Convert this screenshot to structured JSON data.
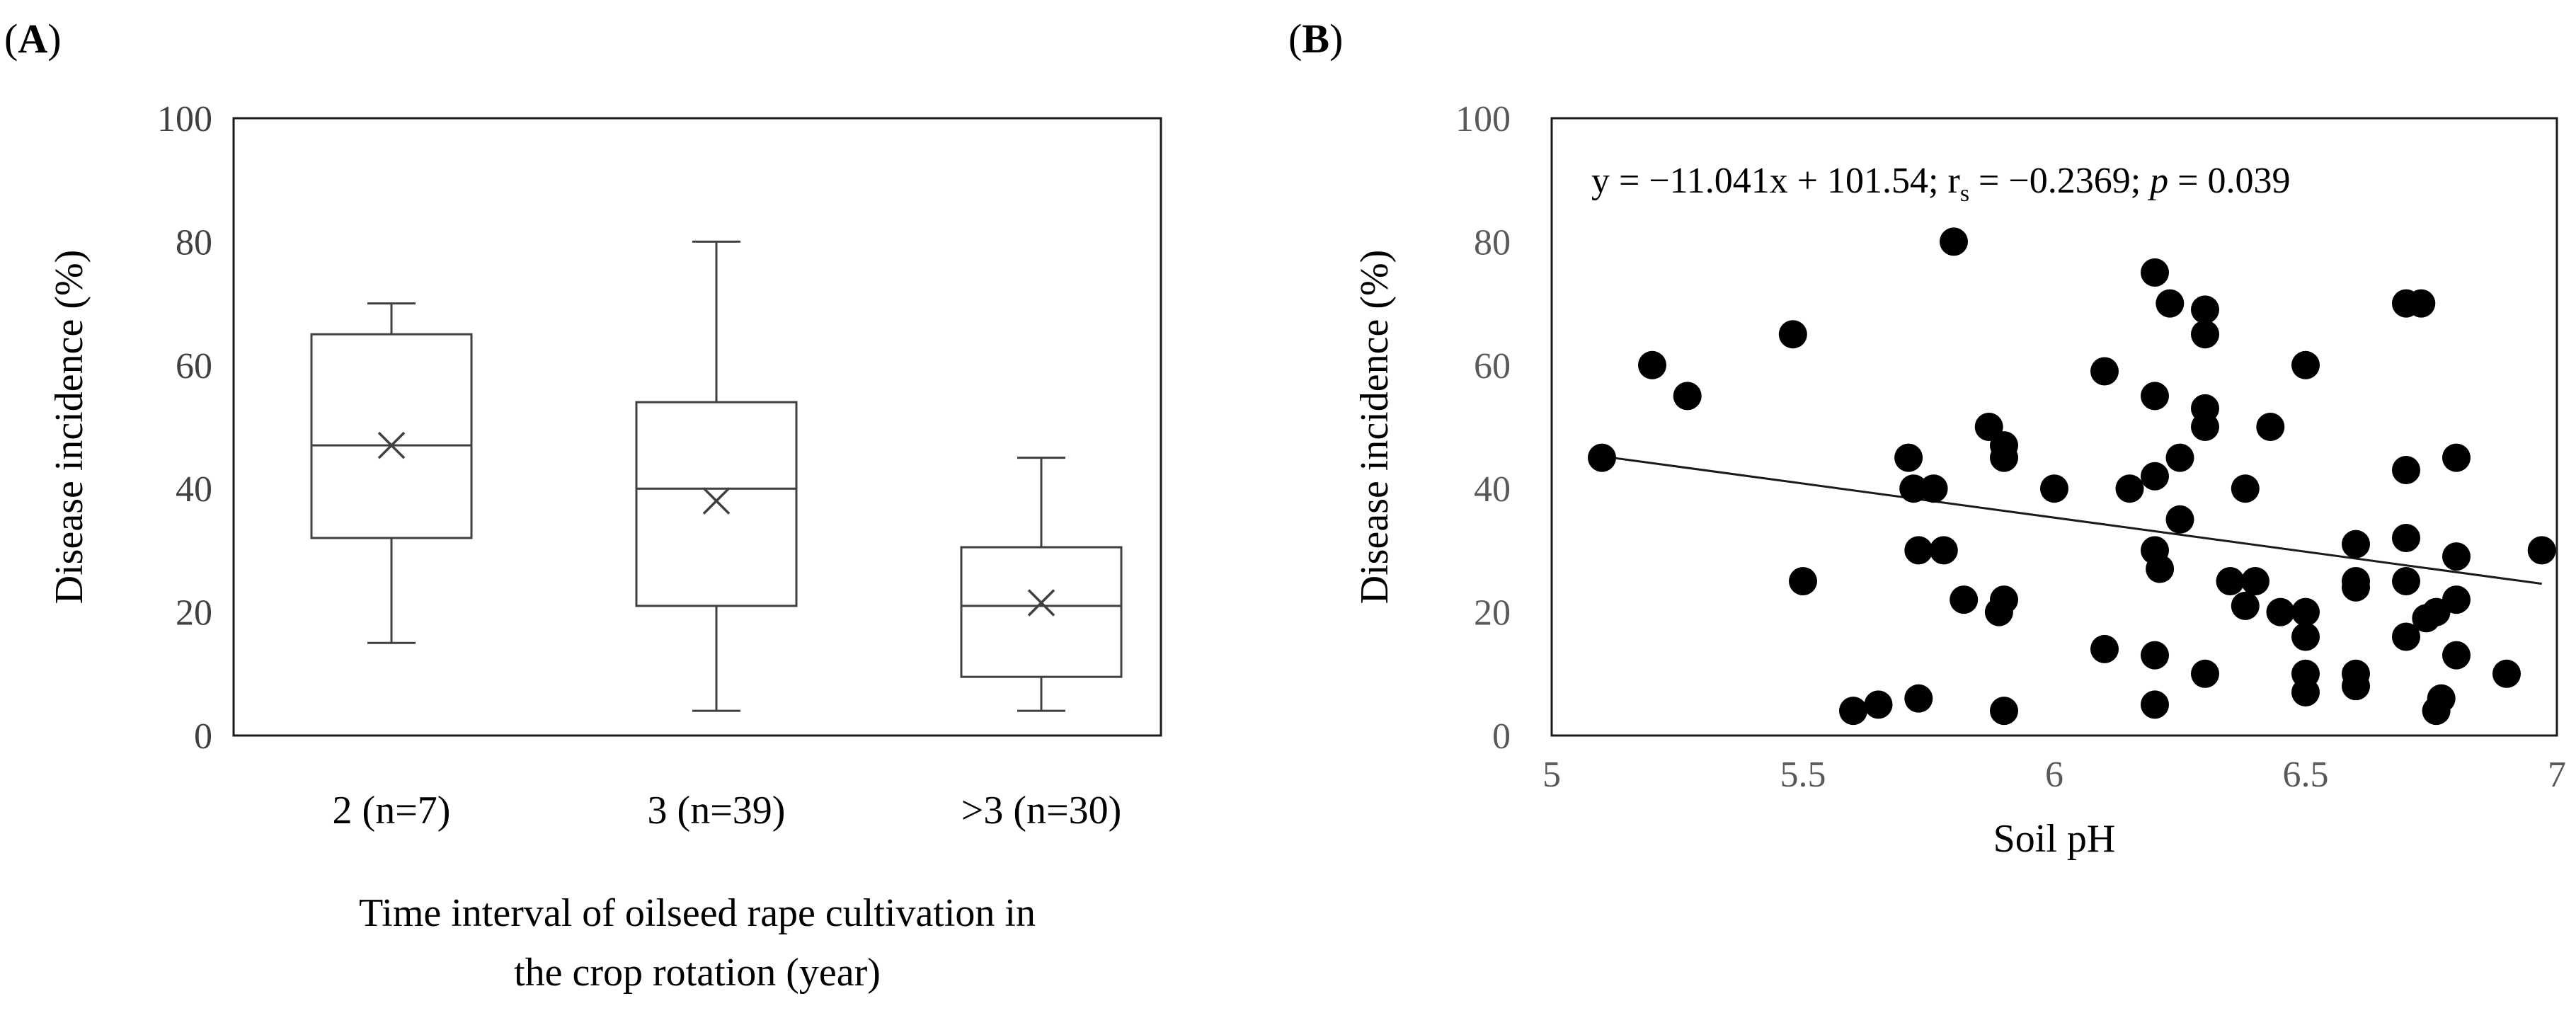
{
  "panels": {
    "a": {
      "label": "A"
    },
    "b": {
      "label": "B"
    }
  },
  "chart_data": [
    {
      "type": "box",
      "panel": "A",
      "ylabel": "Disease incidence (%)",
      "xlabel_lines": [
        "Time interval of oilseed rape cultivation in",
        "the crop rotation (year)"
      ],
      "ylim": [
        0,
        100
      ],
      "yticks": [
        0,
        20,
        40,
        60,
        80,
        100
      ],
      "grid": false,
      "categories": [
        "2 (n=7)",
        "3 (n=39)",
        ">3 (n=30)"
      ],
      "boxes": [
        {
          "min": 15,
          "q1": 32,
          "median": 47,
          "q3": 65,
          "max": 70,
          "mean": 47
        },
        {
          "min": 4,
          "q1": 21,
          "median": 40,
          "q3": 54,
          "max": 80,
          "mean": 38
        },
        {
          "min": 4,
          "q1": 9.5,
          "median": 21,
          "q3": 30.5,
          "max": 45,
          "mean": 21.5
        }
      ]
    },
    {
      "type": "scatter",
      "panel": "B",
      "xlabel": "Soil pH",
      "ylabel": "Disease incidence (%)",
      "xlim": [
        5,
        7
      ],
      "ylim": [
        0,
        100
      ],
      "xticks": [
        5,
        5.5,
        6,
        6.5,
        7
      ],
      "yticks": [
        0,
        20,
        40,
        60,
        80,
        100
      ],
      "grid": false,
      "annotation": {
        "prefix": "y = −11.041x + 101.54; r",
        "subscript": "s",
        "middle": " = −0.2369; ",
        "italic": "p",
        "suffix": " = 0.039"
      },
      "trendline": {
        "slope": -11.041,
        "intercept": 101.54,
        "x_range": [
          5.1,
          6.97
        ]
      },
      "points": [
        {
          "x": 5.1,
          "y": 45
        },
        {
          "x": 5.2,
          "y": 60
        },
        {
          "x": 5.27,
          "y": 55
        },
        {
          "x": 5.48,
          "y": 65
        },
        {
          "x": 5.5,
          "y": 25
        },
        {
          "x": 5.6,
          "y": 4
        },
        {
          "x": 5.65,
          "y": 5
        },
        {
          "x": 5.71,
          "y": 45
        },
        {
          "x": 5.72,
          "y": 40
        },
        {
          "x": 5.73,
          "y": 30
        },
        {
          "x": 5.73,
          "y": 6
        },
        {
          "x": 5.76,
          "y": 40
        },
        {
          "x": 5.78,
          "y": 30
        },
        {
          "x": 5.8,
          "y": 80
        },
        {
          "x": 5.82,
          "y": 22
        },
        {
          "x": 5.87,
          "y": 50
        },
        {
          "x": 5.9,
          "y": 47
        },
        {
          "x": 5.9,
          "y": 45
        },
        {
          "x": 5.9,
          "y": 22
        },
        {
          "x": 5.89,
          "y": 20
        },
        {
          "x": 5.9,
          "y": 4
        },
        {
          "x": 6.0,
          "y": 40
        },
        {
          "x": 6.1,
          "y": 59
        },
        {
          "x": 6.1,
          "y": 14
        },
        {
          "x": 6.15,
          "y": 40
        },
        {
          "x": 6.2,
          "y": 75
        },
        {
          "x": 6.2,
          "y": 55
        },
        {
          "x": 6.2,
          "y": 42
        },
        {
          "x": 6.2,
          "y": 30
        },
        {
          "x": 6.21,
          "y": 27
        },
        {
          "x": 6.2,
          "y": 13
        },
        {
          "x": 6.2,
          "y": 5
        },
        {
          "x": 6.23,
          "y": 70
        },
        {
          "x": 6.25,
          "y": 45
        },
        {
          "x": 6.25,
          "y": 35
        },
        {
          "x": 6.3,
          "y": 69
        },
        {
          "x": 6.3,
          "y": 65
        },
        {
          "x": 6.3,
          "y": 53
        },
        {
          "x": 6.3,
          "y": 50
        },
        {
          "x": 6.3,
          "y": 10
        },
        {
          "x": 6.35,
          "y": 25
        },
        {
          "x": 6.38,
          "y": 40
        },
        {
          "x": 6.38,
          "y": 21
        },
        {
          "x": 6.4,
          "y": 25
        },
        {
          "x": 6.43,
          "y": 50
        },
        {
          "x": 6.45,
          "y": 20
        },
        {
          "x": 6.5,
          "y": 60
        },
        {
          "x": 6.5,
          "y": 20
        },
        {
          "x": 6.5,
          "y": 16
        },
        {
          "x": 6.5,
          "y": 10
        },
        {
          "x": 6.5,
          "y": 7
        },
        {
          "x": 6.6,
          "y": 31
        },
        {
          "x": 6.6,
          "y": 25
        },
        {
          "x": 6.6,
          "y": 24
        },
        {
          "x": 6.6,
          "y": 10
        },
        {
          "x": 6.6,
          "y": 8
        },
        {
          "x": 6.7,
          "y": 70
        },
        {
          "x": 6.73,
          "y": 70
        },
        {
          "x": 6.7,
          "y": 43
        },
        {
          "x": 6.7,
          "y": 32
        },
        {
          "x": 6.7,
          "y": 25
        },
        {
          "x": 6.7,
          "y": 16
        },
        {
          "x": 6.74,
          "y": 19
        },
        {
          "x": 6.76,
          "y": 20
        },
        {
          "x": 6.76,
          "y": 4
        },
        {
          "x": 6.77,
          "y": 6
        },
        {
          "x": 6.8,
          "y": 45
        },
        {
          "x": 6.8,
          "y": 29
        },
        {
          "x": 6.8,
          "y": 22
        },
        {
          "x": 6.8,
          "y": 13
        },
        {
          "x": 6.9,
          "y": 10
        },
        {
          "x": 6.97,
          "y": 30
        }
      ]
    }
  ]
}
